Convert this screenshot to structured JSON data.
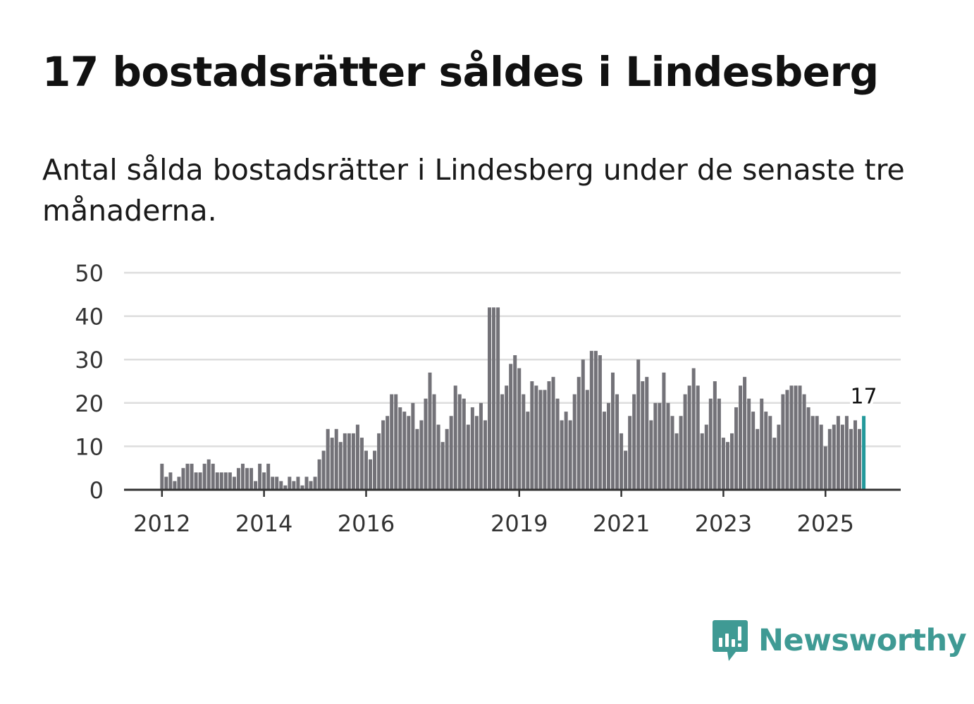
{
  "title": "17 bostadsrätter såldes i Lindesberg",
  "subtitle": "Antal sålda bostadsrätter i Lindesberg under de senaste tre månaderna.",
  "brand": {
    "name": "Newsworthy",
    "color": "#3f9a94",
    "icon": "newsworthy-logo-icon"
  },
  "chart_data": {
    "type": "bar",
    "title": "17 bostadsrätter såldes i Lindesberg",
    "xlabel": "",
    "ylabel": "",
    "ylim": [
      0,
      50
    ],
    "y_ticks": [
      "0",
      "10",
      "20",
      "30",
      "40",
      "50"
    ],
    "x_ticks": [
      "2012",
      "2014",
      "2016",
      "2019",
      "2021",
      "2023",
      "2025"
    ],
    "start": "2012-01",
    "frequency": "monthly",
    "grid": true,
    "bar_color": "#737278",
    "highlight_color": "#23999b",
    "highlight_label": "17",
    "values": [
      6,
      3,
      4,
      2,
      3,
      5,
      6,
      6,
      4,
      4,
      6,
      7,
      6,
      4,
      4,
      4,
      4,
      3,
      5,
      6,
      5,
      5,
      2,
      6,
      4,
      6,
      3,
      3,
      2,
      1,
      3,
      2,
      3,
      1,
      3,
      2,
      3,
      7,
      9,
      14,
      12,
      14,
      11,
      13,
      13,
      13,
      15,
      12,
      9,
      7,
      9,
      13,
      16,
      17,
      22,
      22,
      19,
      18,
      17,
      20,
      14,
      16,
      21,
      27,
      22,
      15,
      11,
      14,
      17,
      24,
      22,
      21,
      15,
      19,
      17,
      20,
      16,
      42,
      42,
      42,
      22,
      24,
      29,
      31,
      28,
      22,
      18,
      25,
      24,
      23,
      23,
      25,
      26,
      21,
      16,
      18,
      16,
      22,
      26,
      30,
      23,
      32,
      32,
      31,
      18,
      20,
      27,
      22,
      13,
      9,
      17,
      22,
      30,
      25,
      26,
      16,
      20,
      20,
      27,
      20,
      17,
      13,
      17,
      22,
      24,
      28,
      24,
      13,
      15,
      21,
      25,
      21,
      12,
      11,
      13,
      19,
      24,
      26,
      21,
      18,
      14,
      21,
      18,
      17,
      12,
      15,
      22,
      23,
      24,
      24,
      24,
      22,
      19,
      17,
      17,
      15,
      10,
      14,
      15,
      17,
      15,
      17,
      14,
      16,
      14,
      17
    ]
  }
}
